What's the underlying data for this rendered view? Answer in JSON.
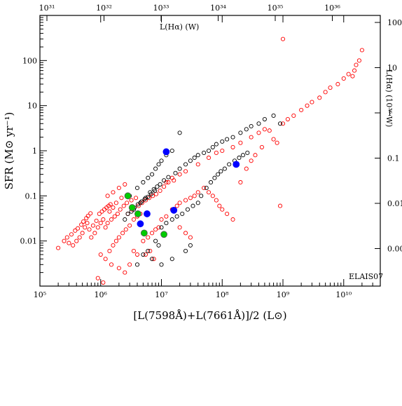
{
  "chart_data": {
    "type": "scatter",
    "ylabel": "SFR (M⊙ yr⁻¹)",
    "xlabel": "[L(7598Å)+L(7661Å)]/2 (L⊙)",
    "top_axis_label": "L(Hα) (W)",
    "right_axis_label": "L(Hα) (10³⁶ W)",
    "field_label": "ELAIS07",
    "x_scale": "log",
    "y_scale": "log",
    "xlim": [
      100000,
      40000000000
    ],
    "ylim": [
      0.001,
      1000
    ],
    "x_ticks": [
      {
        "value": 100000,
        "label": "10⁵"
      },
      {
        "value": 1000000,
        "label": "10⁶"
      },
      {
        "value": 10000000,
        "label": "10⁷"
      },
      {
        "value": 100000000,
        "label": "10⁸"
      },
      {
        "value": 1000000000,
        "label": "10⁹"
      },
      {
        "value": 10000000000,
        "label": "10¹⁰"
      }
    ],
    "y_ticks": [
      {
        "value": 0.01,
        "label": "0.01"
      },
      {
        "value": 0.1,
        "label": "0.1"
      },
      {
        "value": 1,
        "label": "1"
      },
      {
        "value": 10,
        "label": "10"
      },
      {
        "value": 100,
        "label": "100"
      }
    ],
    "top_ticks": [
      {
        "value": 31,
        "label": "10³¹"
      },
      {
        "value": 32,
        "label": "10³²"
      },
      {
        "value": 33,
        "label": "10³³"
      },
      {
        "value": 34,
        "label": "10³⁴"
      },
      {
        "value": 35,
        "label": "10³⁵"
      },
      {
        "value": 36,
        "label": "10³⁶"
      }
    ],
    "right_ticks": [
      {
        "value": 100,
        "label": "100"
      },
      {
        "value": 10,
        "label": "10"
      },
      {
        "value": 1,
        "label": "1"
      },
      {
        "value": 0.1,
        "label": "0.1"
      },
      {
        "value": 0.01,
        "label": "0.01"
      },
      {
        "value": 0.001,
        "label": "0.00"
      }
    ],
    "grid": false,
    "series": [
      {
        "marker": "open-circle",
        "color": "#ff0000",
        "points": [
          [
            1400000,
            0.006
          ],
          [
            1600000,
            0.008
          ],
          [
            1800000,
            0.01
          ],
          [
            2000000,
            0.012
          ],
          [
            2300000,
            0.015
          ],
          [
            2600000,
            0.018
          ],
          [
            3000000,
            0.022
          ],
          [
            3500000,
            0.03
          ],
          [
            4000000,
            0.035
          ],
          [
            4500000,
            0.04
          ],
          [
            1200000,
            0.02
          ],
          [
            1300000,
            0.025
          ],
          [
            1500000,
            0.03
          ],
          [
            1700000,
            0.035
          ],
          [
            1900000,
            0.04
          ],
          [
            2100000,
            0.05
          ],
          [
            2400000,
            0.06
          ],
          [
            2700000,
            0.07
          ],
          [
            3200000,
            0.08
          ],
          [
            3800000,
            0.09
          ],
          [
            800000,
            0.015
          ],
          [
            900000,
            0.02
          ],
          [
            1000000,
            0.025
          ],
          [
            1100000,
            0.03
          ],
          [
            950000,
            0.04
          ],
          [
            1050000,
            0.045
          ],
          [
            1150000,
            0.05
          ],
          [
            1250000,
            0.055
          ],
          [
            1350000,
            0.06
          ],
          [
            1450000,
            0.065
          ],
          [
            700000,
            0.012
          ],
          [
            650000,
            0.018
          ],
          [
            750000,
            0.022
          ],
          [
            850000,
            0.028
          ],
          [
            600000,
            0.025
          ],
          [
            550000,
            0.02
          ],
          [
            500000,
            0.015
          ],
          [
            450000,
            0.012
          ],
          [
            400000,
            0.01
          ],
          [
            350000,
            0.008
          ],
          [
            300000,
            0.009
          ],
          [
            280000,
            0.012
          ],
          [
            330000,
            0.014
          ],
          [
            380000,
            0.017
          ],
          [
            420000,
            0.019
          ],
          [
            480000,
            0.023
          ],
          [
            520000,
            0.027
          ],
          [
            580000,
            0.032
          ],
          [
            620000,
            0.036
          ],
          [
            680000,
            0.041
          ],
          [
            200000,
            0.007
          ],
          [
            250000,
            0.01
          ],
          [
            1000000,
            0.005
          ],
          [
            1200000,
            0.004
          ],
          [
            1500000,
            0.003
          ],
          [
            2000000,
            0.0025
          ],
          [
            2500000,
            0.002
          ],
          [
            900000,
            0.0015
          ],
          [
            1100000,
            0.0012
          ],
          [
            3000000,
            0.003
          ],
          [
            5000000,
            0.01
          ],
          [
            6000000,
            0.012
          ],
          [
            7000000,
            0.015
          ],
          [
            8000000,
            0.018
          ],
          [
            9000000,
            0.02
          ],
          [
            5500000,
            0.005
          ],
          [
            6500000,
            0.006
          ],
          [
            7500000,
            0.004
          ],
          [
            4000000,
            0.005
          ],
          [
            3500000,
            0.006
          ],
          [
            10000000,
            0.03
          ],
          [
            12000000,
            0.035
          ],
          [
            15000000,
            0.05
          ],
          [
            18000000,
            0.06
          ],
          [
            20000000,
            0.07
          ],
          [
            25000000,
            0.08
          ],
          [
            30000000,
            0.09
          ],
          [
            35000000,
            0.1
          ],
          [
            40000000,
            0.12
          ],
          [
            50000000,
            0.15
          ],
          [
            60000000,
            0.12
          ],
          [
            70000000,
            0.1
          ],
          [
            80000000,
            0.08
          ],
          [
            90000000,
            0.06
          ],
          [
            100000000,
            0.05
          ],
          [
            120000000,
            0.04
          ],
          [
            150000000,
            0.03
          ],
          [
            20000000,
            0.02
          ],
          [
            25000000,
            0.015
          ],
          [
            30000000,
            0.012
          ],
          [
            12000000,
            0.2
          ],
          [
            15000000,
            0.25
          ],
          [
            20000000,
            0.3
          ],
          [
            25000000,
            0.35
          ],
          [
            40000000,
            0.5
          ],
          [
            60000000,
            0.7
          ],
          [
            80000000,
            0.9
          ],
          [
            100000000,
            1.0
          ],
          [
            150000000,
            1.2
          ],
          [
            200000000,
            1.5
          ],
          [
            300000000,
            2.0
          ],
          [
            400000000,
            2.5
          ],
          [
            500000000,
            3.0
          ],
          [
            600000000,
            2.8
          ],
          [
            700000000,
            1.8
          ],
          [
            800000000,
            1.5
          ],
          [
            1000000000,
            4.0
          ],
          [
            1200000000,
            5.0
          ],
          [
            1500000000,
            6.0
          ],
          [
            2000000000,
            8.0
          ],
          [
            2500000000,
            10.0
          ],
          [
            3000000000,
            12.0
          ],
          [
            4000000000,
            15.0
          ],
          [
            5000000000,
            20.0
          ],
          [
            6000000000,
            25.0
          ],
          [
            8000000000,
            30.0
          ],
          [
            10000000000,
            40.0
          ],
          [
            12000000000,
            50.0
          ],
          [
            15000000000,
            60.0
          ],
          [
            20000000000,
            170.0
          ],
          [
            18000000000,
            100.0
          ],
          [
            16000000000,
            80.0
          ],
          [
            14000000000,
            45.0
          ],
          [
            1000000000,
            300.0
          ],
          [
            900000000,
            0.06
          ],
          [
            200000000,
            0.2
          ],
          [
            250000000,
            0.4
          ],
          [
            300000000,
            0.6
          ],
          [
            350000000,
            0.8
          ],
          [
            450000000,
            1.2
          ],
          [
            1300000,
            0.1
          ],
          [
            1600000,
            0.12
          ],
          [
            2000000,
            0.15
          ],
          [
            2500000,
            0.18
          ],
          [
            2200000,
            0.09
          ],
          [
            1800000,
            0.07
          ],
          [
            1400000,
            0.045
          ],
          [
            1600000,
            0.055
          ],
          [
            2800000,
            0.04
          ],
          [
            3300000,
            0.05
          ],
          [
            4200000,
            0.06
          ],
          [
            4800000,
            0.07
          ],
          [
            5500000,
            0.08
          ],
          [
            6300000,
            0.09
          ],
          [
            7200000,
            0.1
          ],
          [
            8200000,
            0.11
          ],
          [
            9500000,
            0.13
          ],
          [
            11000000,
            0.16
          ],
          [
            13000000,
            0.2
          ],
          [
            16000000,
            0.22
          ]
        ]
      },
      {
        "marker": "open-circle",
        "color": "#000000",
        "points": [
          [
            3000000,
            0.1
          ],
          [
            4000000,
            0.15
          ],
          [
            5000000,
            0.2
          ],
          [
            6000000,
            0.25
          ],
          [
            7000000,
            0.3
          ],
          [
            8000000,
            0.4
          ],
          [
            9000000,
            0.5
          ],
          [
            10000000,
            0.6
          ],
          [
            12000000,
            0.8
          ],
          [
            15000000,
            1.0
          ],
          [
            3500000,
            0.05
          ],
          [
            4500000,
            0.07
          ],
          [
            5500000,
            0.09
          ],
          [
            6500000,
            0.12
          ],
          [
            7500000,
            0.14
          ],
          [
            8500000,
            0.16
          ],
          [
            9500000,
            0.18
          ],
          [
            11000000,
            0.22
          ],
          [
            13000000,
            0.26
          ],
          [
            17000000,
            0.32
          ],
          [
            20000000,
            0.4
          ],
          [
            25000000,
            0.5
          ],
          [
            30000000,
            0.6
          ],
          [
            35000000,
            0.7
          ],
          [
            40000000,
            0.8
          ],
          [
            50000000,
            0.9
          ],
          [
            60000000,
            1.0
          ],
          [
            70000000,
            1.2
          ],
          [
            80000000,
            1.4
          ],
          [
            100000000,
            1.6
          ],
          [
            120000000,
            1.8
          ],
          [
            150000000,
            2.0
          ],
          [
            200000000,
            2.5
          ],
          [
            250000000,
            3.0
          ],
          [
            300000000,
            3.5
          ],
          [
            400000000,
            4.0
          ],
          [
            500000000,
            5.0
          ],
          [
            700000000,
            6.0
          ],
          [
            900000000,
            4.0
          ],
          [
            20000000,
            2.5
          ],
          [
            10000000,
            0.02
          ],
          [
            12000000,
            0.025
          ],
          [
            15000000,
            0.03
          ],
          [
            18000000,
            0.035
          ],
          [
            22000000,
            0.04
          ],
          [
            27000000,
            0.05
          ],
          [
            33000000,
            0.06
          ],
          [
            40000000,
            0.07
          ],
          [
            8000000,
            0.01
          ],
          [
            9000000,
            0.008
          ],
          [
            5000000,
            0.005
          ],
          [
            6000000,
            0.006
          ],
          [
            7000000,
            0.004
          ],
          [
            4000000,
            0.003
          ],
          [
            10000000,
            0.003
          ],
          [
            15000000,
            0.004
          ],
          [
            25000000,
            0.006
          ],
          [
            30000000,
            0.008
          ],
          [
            45000000,
            0.1
          ],
          [
            55000000,
            0.15
          ],
          [
            65000000,
            0.2
          ],
          [
            75000000,
            0.25
          ],
          [
            85000000,
            0.3
          ],
          [
            95000000,
            0.35
          ],
          [
            110000000,
            0.4
          ],
          [
            130000000,
            0.5
          ],
          [
            160000000,
            0.6
          ],
          [
            190000000,
            0.7
          ],
          [
            220000000,
            0.8
          ],
          [
            260000000,
            0.9
          ],
          [
            2500000,
            0.03
          ],
          [
            2800000,
            0.04
          ],
          [
            3200000,
            0.045
          ],
          [
            3600000,
            0.055
          ],
          [
            4100000,
            0.065
          ],
          [
            4700000,
            0.075
          ],
          [
            5300000,
            0.085
          ],
          [
            6000000,
            0.095
          ],
          [
            6800000,
            0.11
          ],
          [
            7800000,
            0.13
          ]
        ]
      },
      {
        "marker": "filled-circle",
        "color": "#0000ff",
        "points": [
          [
            12000000,
            0.95
          ],
          [
            170000000,
            0.5
          ],
          [
            16000000,
            0.048
          ],
          [
            5800000,
            0.04
          ],
          [
            4500000,
            0.024
          ]
        ]
      },
      {
        "marker": "filled-circle",
        "color": "#00cc00",
        "points": [
          [
            2800000,
            0.1
          ],
          [
            3300000,
            0.055
          ],
          [
            4100000,
            0.04
          ],
          [
            5200000,
            0.015
          ],
          [
            11000000,
            0.014
          ]
        ]
      }
    ]
  }
}
